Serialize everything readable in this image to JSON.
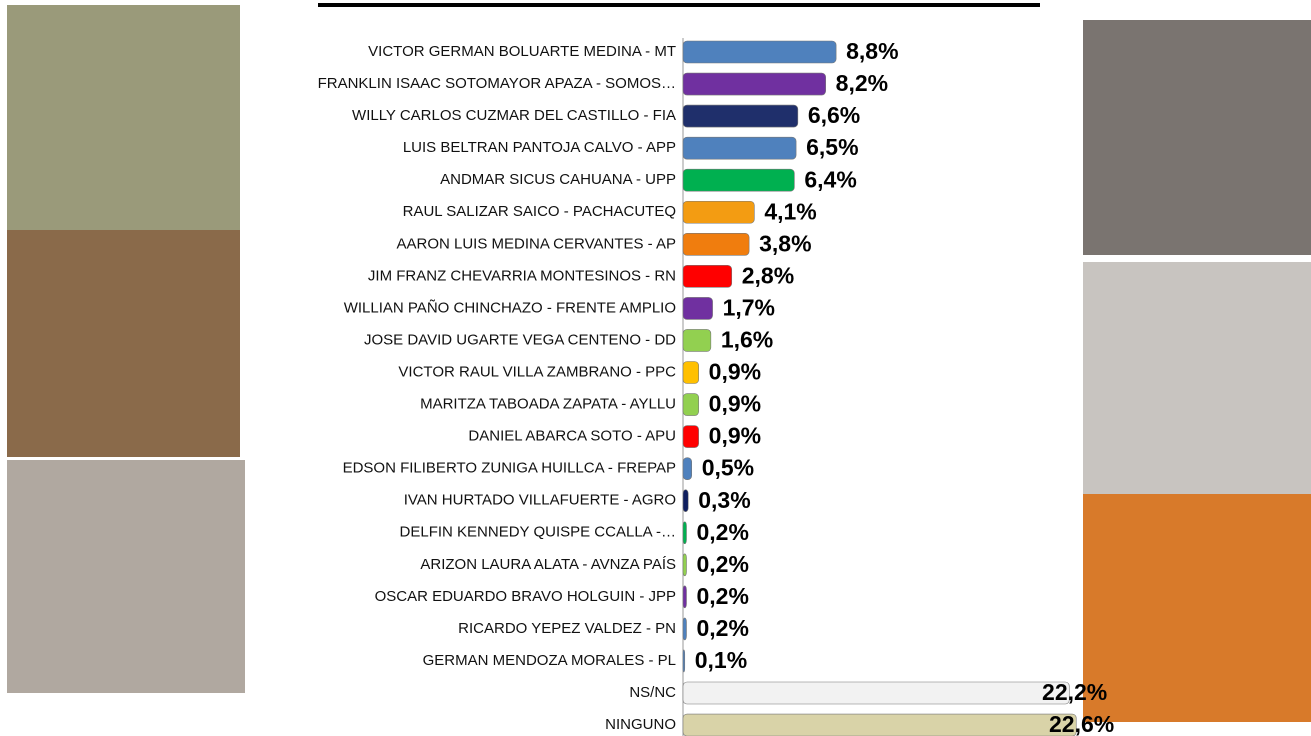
{
  "chart_data": {
    "type": "barh",
    "categories": [
      "VICTOR GERMAN BOLUARTE MEDINA - MT",
      "FRANKLIN ISAAC SOTOMAYOR APAZA - SOMOS…",
      "WILLY CARLOS CUZMAR DEL CASTILLO - FIA",
      "LUIS BELTRAN PANTOJA CALVO - APP",
      "ANDMAR SICUS CAHUANA - UPP",
      "RAUL SALIZAR SAICO - PACHACUTEQ",
      "AARON LUIS MEDINA CERVANTES - AP",
      "JIM FRANZ CHEVARRIA MONTESINOS - RN",
      "WILLIAN PAÑO CHINCHAZO - FRENTE AMPLIO",
      "JOSE DAVID UGARTE VEGA CENTENO - DD",
      "VICTOR RAUL VILLA ZAMBRANO - PPC",
      "MARITZA TABOADA ZAPATA - AYLLU",
      "DANIEL ABARCA SOTO - APU",
      "EDSON FILIBERTO ZUNIGA HUILLCA - FREPAP",
      "IVAN HURTADO VILLAFUERTE - AGRO",
      "DELFIN KENNEDY QUISPE CCALLA -…",
      "ARIZON LAURA ALATA - AVNZA PAÍS",
      "OSCAR EDUARDO BRAVO HOLGUIN - JPP",
      "RICARDO YEPEZ VALDEZ - PN",
      "GERMAN MENDOZA MORALES - PL",
      "NS/NC",
      "NINGUNO"
    ],
    "values": [
      8.8,
      8.2,
      6.6,
      6.5,
      6.4,
      4.1,
      3.8,
      2.8,
      1.7,
      1.6,
      0.9,
      0.9,
      0.9,
      0.5,
      0.3,
      0.2,
      0.2,
      0.2,
      0.2,
      0.1,
      22.2,
      22.6
    ],
    "value_labels": [
      "8,8%",
      "8,2%",
      "6,6%",
      "6,5%",
      "6,4%",
      "4,1%",
      "3,8%",
      "2,8%",
      "1,7%",
      "1,6%",
      "0,9%",
      "0,9%",
      "0,9%",
      "0,5%",
      "0,3%",
      "0,2%",
      "0,2%",
      "0,2%",
      "0,2%",
      "0,1%",
      "22,2%",
      "22,6%"
    ],
    "colors": [
      "#4f81bd",
      "#7030a0",
      "#1f2f6b",
      "#4f81bd",
      "#00b050",
      "#f39c12",
      "#f07d0e",
      "#ff0000",
      "#7030a0",
      "#92d050",
      "#ffc000",
      "#92d050",
      "#ff0000",
      "#4f81bd",
      "#0f1f5f",
      "#00b050",
      "#92d050",
      "#7030a0",
      "#4f81bd",
      "#4f81bd",
      "#f2f2f2",
      "#d9d3a8"
    ]
  }
}
